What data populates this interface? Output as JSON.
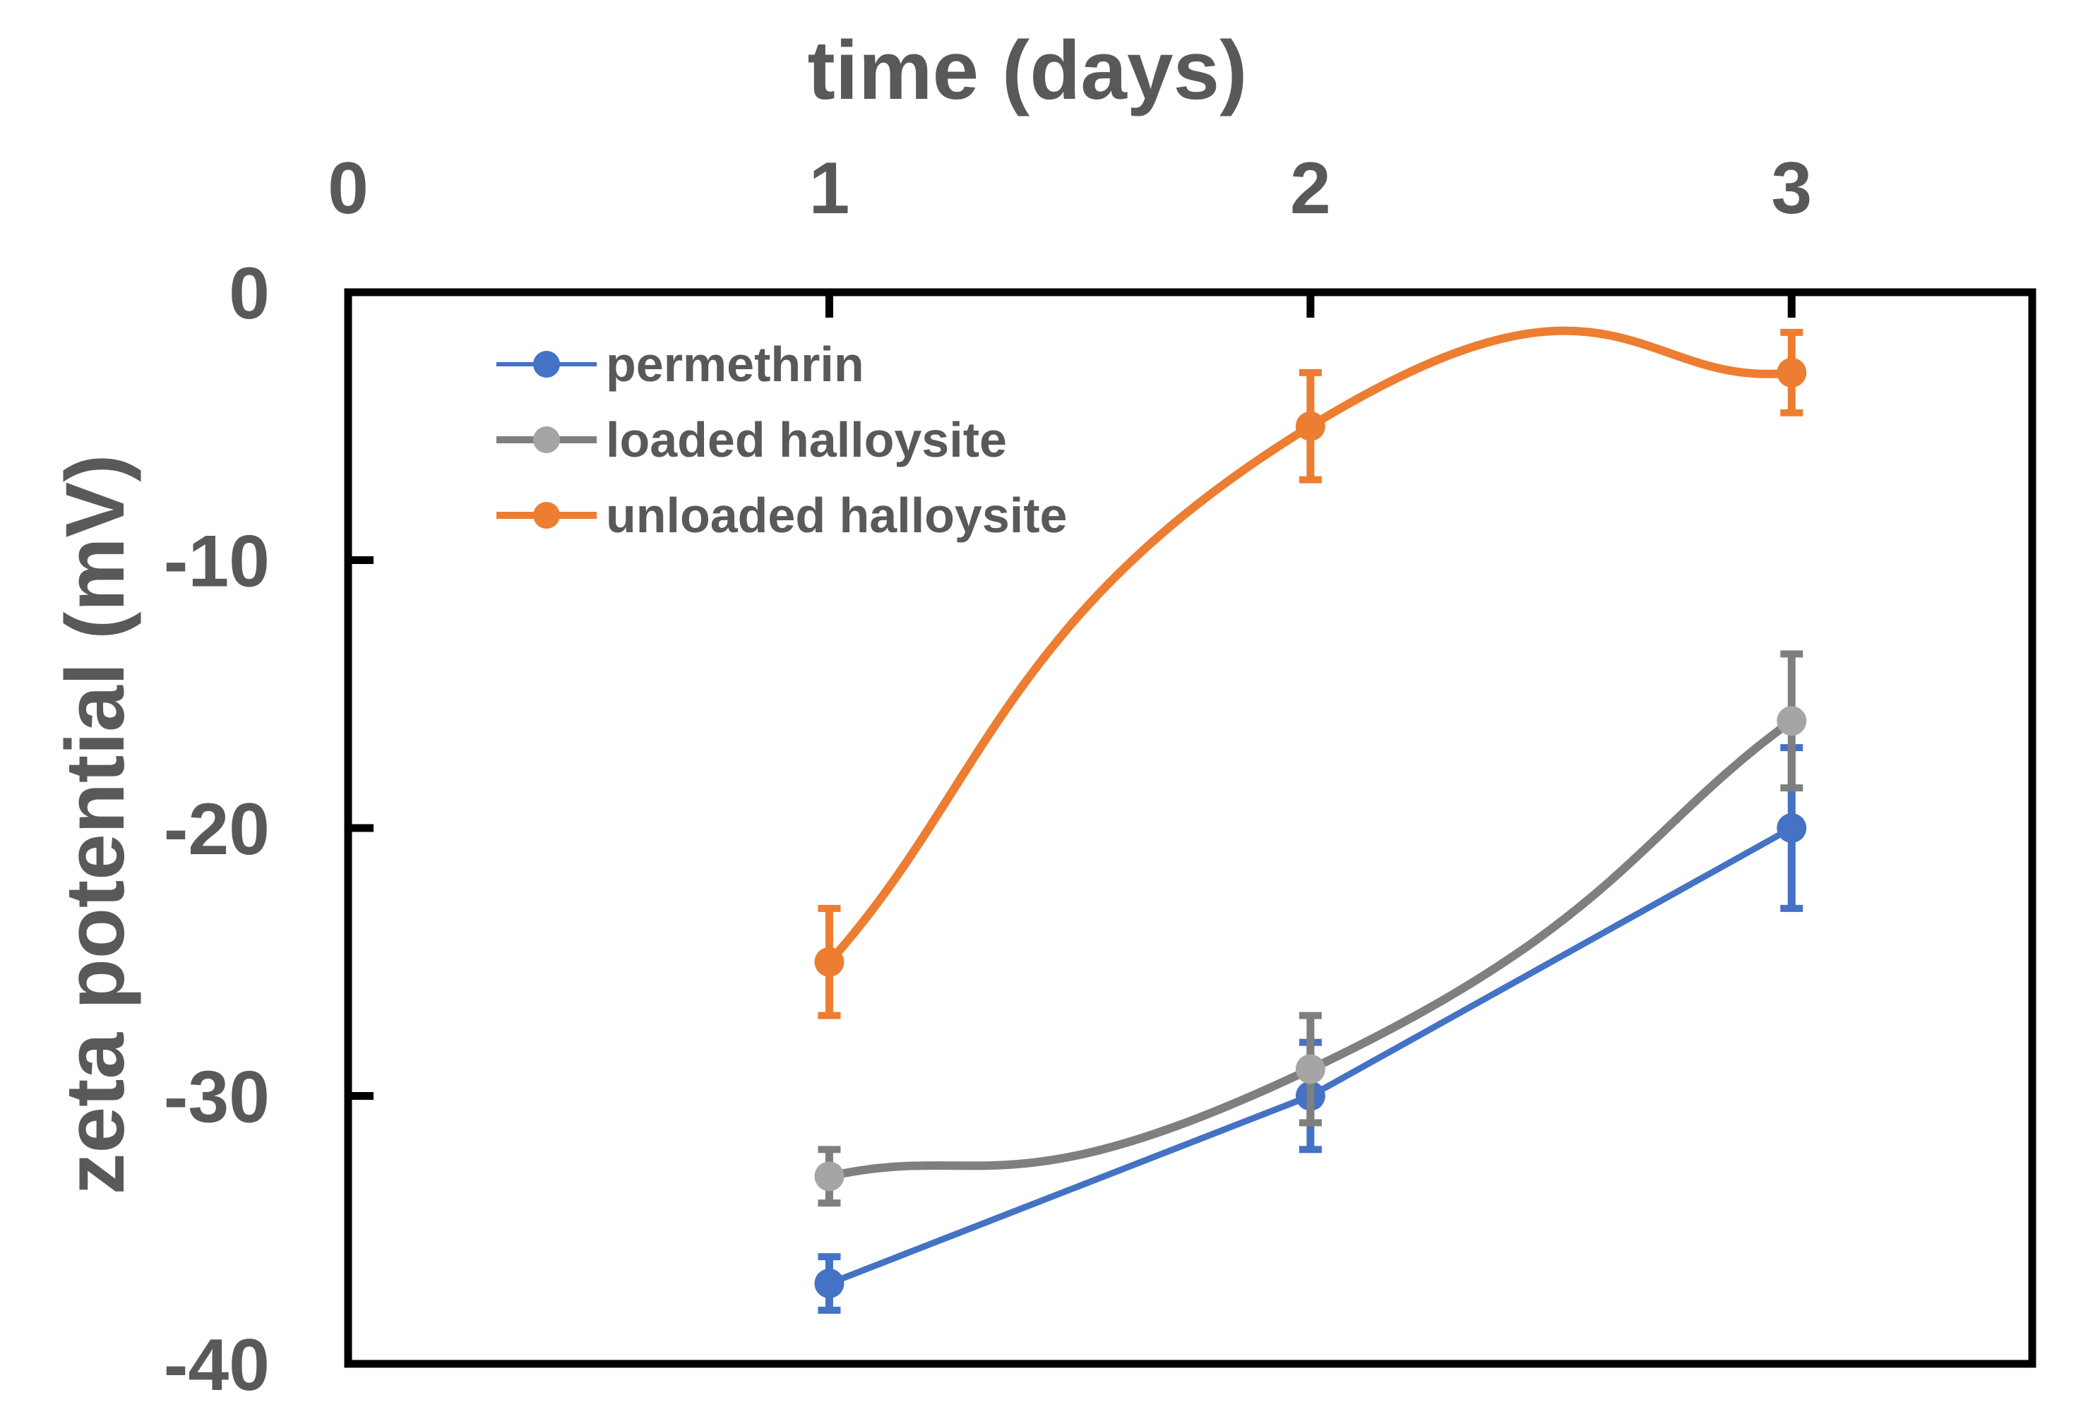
{
  "chart_data": {
    "type": "line",
    "title": "",
    "xlabel": "time (days)",
    "ylabel": "zeta potential (mV)",
    "x_axis_position": "top",
    "xlim": [
      0,
      3.5
    ],
    "ylim": [
      -40,
      0
    ],
    "xticks": [
      "0",
      "1",
      "2",
      "3"
    ],
    "yticks": [
      "0",
      "-10",
      "-20",
      "-30",
      "-40"
    ],
    "grid": false,
    "legend_position": "top-left",
    "x": [
      1,
      2,
      3
    ],
    "series": [
      {
        "name": "permethrin",
        "color": "#4472C4",
        "values": [
          -37,
          -30,
          -20
        ],
        "error": [
          1,
          2,
          3
        ],
        "smooth": false
      },
      {
        "name": "loaded halloysite",
        "color": "#7F7F7F",
        "marker_color": "#A5A5A5",
        "values": [
          -33,
          -29,
          -16
        ],
        "error": [
          1,
          2,
          2.5
        ],
        "smooth": true
      },
      {
        "name": "unloaded halloysite",
        "color": "#ED7D31",
        "values": [
          -25,
          -5,
          -3
        ],
        "error": [
          2,
          2,
          1.5
        ],
        "smooth": true
      }
    ]
  }
}
